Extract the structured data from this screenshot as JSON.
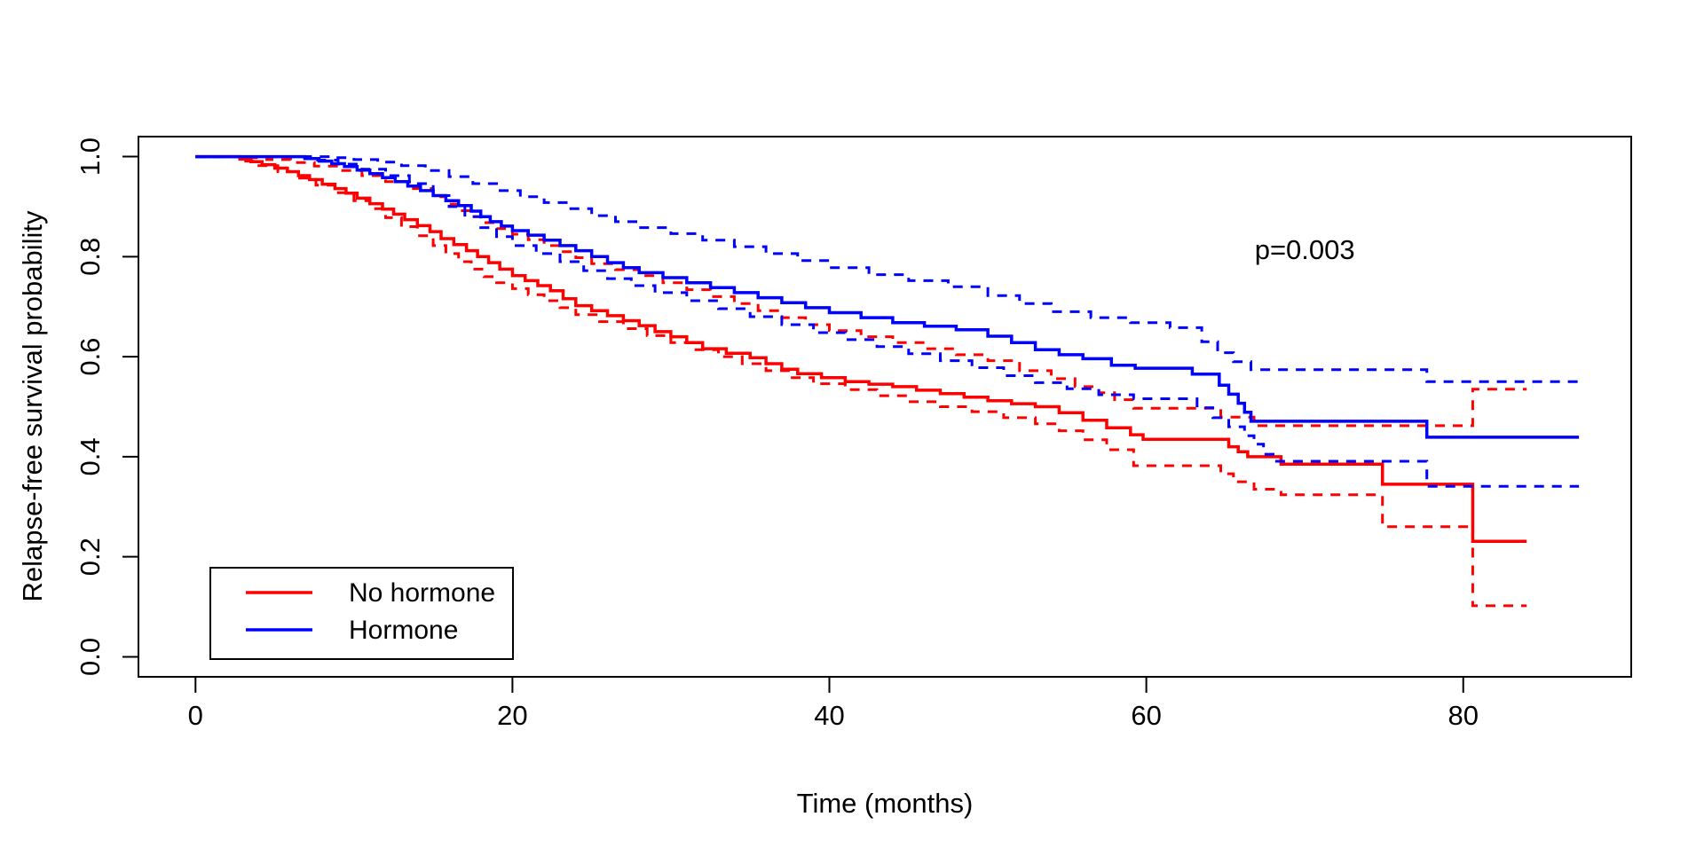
{
  "figure": {
    "background": "#ffffff",
    "p_value_annotation": "p=0.003",
    "xlabel": "Time (months)",
    "ylabel": "Relapse-free survival probability"
  },
  "legend": {
    "entries": [
      {
        "label": "No hormone",
        "color": "#ff0000"
      },
      {
        "label": "Hormone",
        "color": "#0000ff"
      }
    ]
  },
  "chart_data": {
    "type": "line",
    "subtype": "kaplan-meier-step",
    "title": "",
    "xlabel": "Time (months)",
    "ylabel": "Relapse-free survival probability",
    "xlim": [
      -3.6,
      90.6
    ],
    "ylim": [
      -0.04,
      1.04
    ],
    "grid": false,
    "legend_position": "bottom-left",
    "annotation": {
      "text": "p=0.003",
      "x": 70,
      "y": 0.795
    },
    "xticks": {
      "values": [
        0,
        20,
        40,
        60,
        80
      ],
      "labels": [
        "0",
        "20",
        "40",
        "60",
        "80"
      ]
    },
    "yticks": {
      "values": [
        0.0,
        0.2,
        0.4,
        0.6,
        0.8,
        1.0
      ],
      "labels": [
        "0.0",
        "0.2",
        "0.4",
        "0.6",
        "0.8",
        "1.0"
      ]
    },
    "series": [
      {
        "name": "No hormone (KM estimate)",
        "id": "no-hormone-curve",
        "color": "#ff0000",
        "dash": "solid",
        "width": 3.5,
        "points": [
          [
            0,
            1
          ],
          [
            2.8,
            0.995
          ],
          [
            3.5,
            0.99
          ],
          [
            4.2,
            0.984
          ],
          [
            5,
            0.977
          ],
          [
            5.8,
            0.97
          ],
          [
            6.5,
            0.962
          ],
          [
            7.2,
            0.954
          ],
          [
            8,
            0.945
          ],
          [
            8.8,
            0.936
          ],
          [
            9.5,
            0.927
          ],
          [
            10.2,
            0.917
          ],
          [
            11,
            0.906
          ],
          [
            11.8,
            0.895
          ],
          [
            12.5,
            0.885
          ],
          [
            13.2,
            0.874
          ],
          [
            14,
            0.862
          ],
          [
            14.8,
            0.85
          ],
          [
            15.5,
            0.836
          ],
          [
            16.3,
            0.824
          ],
          [
            17.1,
            0.812
          ],
          [
            17.8,
            0.8
          ],
          [
            18.5,
            0.788
          ],
          [
            19.2,
            0.775
          ],
          [
            20,
            0.762
          ],
          [
            20.8,
            0.752
          ],
          [
            21.6,
            0.742
          ],
          [
            22.4,
            0.732
          ],
          [
            23.2,
            0.716
          ],
          [
            24,
            0.702
          ],
          [
            25,
            0.692
          ],
          [
            26,
            0.682
          ],
          [
            27,
            0.672
          ],
          [
            28,
            0.662
          ],
          [
            29,
            0.65
          ],
          [
            30,
            0.64
          ],
          [
            31,
            0.628
          ],
          [
            32,
            0.616
          ],
          [
            33.5,
            0.607
          ],
          [
            35,
            0.598
          ],
          [
            36,
            0.586
          ],
          [
            37,
            0.575
          ],
          [
            38,
            0.566
          ],
          [
            39.5,
            0.558
          ],
          [
            41,
            0.55
          ],
          [
            42.5,
            0.545
          ],
          [
            44,
            0.54
          ],
          [
            45.5,
            0.533
          ],
          [
            47,
            0.526
          ],
          [
            48.5,
            0.519
          ],
          [
            50,
            0.512
          ],
          [
            51.5,
            0.506
          ],
          [
            53,
            0.5
          ],
          [
            54.5,
            0.488
          ],
          [
            56,
            0.473
          ],
          [
            57.5,
            0.458
          ],
          [
            59,
            0.444
          ],
          [
            59.8,
            0.435
          ],
          [
            65.2,
            0.42
          ],
          [
            65.8,
            0.41
          ],
          [
            66.4,
            0.4
          ],
          [
            68.5,
            0.385
          ],
          [
            74.9,
            0.345
          ],
          [
            80.6,
            0.231
          ],
          [
            84,
            0.231
          ]
        ]
      },
      {
        "name": "No hormone upper 95% CI",
        "id": "no-hormone-upper-ci",
        "color": "#ff0000",
        "dash": "dashed",
        "width": 3,
        "points": [
          [
            0,
            1
          ],
          [
            3.2,
            0.998
          ],
          [
            4.5,
            0.994
          ],
          [
            6,
            0.988
          ],
          [
            7.5,
            0.981
          ],
          [
            9,
            0.972
          ],
          [
            10.5,
            0.962
          ],
          [
            12,
            0.95
          ],
          [
            13.5,
            0.936
          ],
          [
            15,
            0.92
          ],
          [
            15.8,
            0.905
          ],
          [
            16.6,
            0.892
          ],
          [
            17.4,
            0.88
          ],
          [
            18.2,
            0.868
          ],
          [
            19,
            0.856
          ],
          [
            20,
            0.845
          ],
          [
            21,
            0.834
          ],
          [
            22,
            0.822
          ],
          [
            23,
            0.81
          ],
          [
            24,
            0.798
          ],
          [
            25,
            0.786
          ],
          [
            26.5,
            0.774
          ],
          [
            28,
            0.762
          ],
          [
            29.5,
            0.748
          ],
          [
            31,
            0.734
          ],
          [
            32.5,
            0.72
          ],
          [
            34,
            0.706
          ],
          [
            35.5,
            0.692
          ],
          [
            37,
            0.678
          ],
          [
            38.5,
            0.664
          ],
          [
            40,
            0.652
          ],
          [
            42,
            0.64
          ],
          [
            44,
            0.628
          ],
          [
            46,
            0.616
          ],
          [
            48,
            0.604
          ],
          [
            50,
            0.592
          ],
          [
            52,
            0.572
          ],
          [
            54,
            0.556
          ],
          [
            55.5,
            0.54
          ],
          [
            57,
            0.528
          ],
          [
            58,
            0.514
          ],
          [
            59.2,
            0.497
          ],
          [
            64.7,
            0.479
          ],
          [
            66.8,
            0.462
          ],
          [
            80.6,
            0.535
          ],
          [
            84,
            0.535
          ]
        ]
      },
      {
        "name": "No hormone lower 95% CI",
        "id": "no-hormone-lower-ci",
        "color": "#ff0000",
        "dash": "dashed",
        "width": 3,
        "points": [
          [
            0,
            1
          ],
          [
            2.8,
            0.991
          ],
          [
            4,
            0.982
          ],
          [
            5.2,
            0.97
          ],
          [
            6.4,
            0.957
          ],
          [
            7.6,
            0.943
          ],
          [
            8.8,
            0.928
          ],
          [
            10,
            0.912
          ],
          [
            11,
            0.896
          ],
          [
            12,
            0.878
          ],
          [
            13,
            0.86
          ],
          [
            14,
            0.842
          ],
          [
            15,
            0.822
          ],
          [
            15.8,
            0.806
          ],
          [
            16.6,
            0.79
          ],
          [
            17.4,
            0.775
          ],
          [
            18.2,
            0.76
          ],
          [
            19,
            0.748
          ],
          [
            20,
            0.736
          ],
          [
            21,
            0.724
          ],
          [
            22,
            0.712
          ],
          [
            23,
            0.698
          ],
          [
            24,
            0.684
          ],
          [
            25.5,
            0.67
          ],
          [
            27,
            0.656
          ],
          [
            28.5,
            0.642
          ],
          [
            30,
            0.628
          ],
          [
            31.5,
            0.614
          ],
          [
            33,
            0.6
          ],
          [
            34.5,
            0.586
          ],
          [
            36,
            0.572
          ],
          [
            37.5,
            0.558
          ],
          [
            39,
            0.546
          ],
          [
            41,
            0.534
          ],
          [
            43,
            0.522
          ],
          [
            45,
            0.51
          ],
          [
            47,
            0.5
          ],
          [
            49,
            0.49
          ],
          [
            51,
            0.478
          ],
          [
            53,
            0.466
          ],
          [
            54.5,
            0.452
          ],
          [
            56,
            0.434
          ],
          [
            57.5,
            0.414
          ],
          [
            59.2,
            0.382
          ],
          [
            64.7,
            0.366
          ],
          [
            65.5,
            0.35
          ],
          [
            66.8,
            0.335
          ],
          [
            68.5,
            0.324
          ],
          [
            74.9,
            0.26
          ],
          [
            80.6,
            0.102
          ],
          [
            84,
            0.102
          ]
        ]
      },
      {
        "name": "Hormone (KM estimate)",
        "id": "hormone-curve",
        "color": "#0000ff",
        "dash": "solid",
        "width": 3.5,
        "points": [
          [
            0,
            1
          ],
          [
            6.9,
            0.996
          ],
          [
            7.8,
            0.991
          ],
          [
            8.6,
            0.986
          ],
          [
            9.4,
            0.98
          ],
          [
            10.2,
            0.973
          ],
          [
            11,
            0.966
          ],
          [
            11.8,
            0.958
          ],
          [
            12.6,
            0.95
          ],
          [
            13.4,
            0.941
          ],
          [
            14.2,
            0.932
          ],
          [
            15,
            0.922
          ],
          [
            15.8,
            0.912
          ],
          [
            16.6,
            0.902
          ],
          [
            17.4,
            0.891
          ],
          [
            18,
            0.88
          ],
          [
            18.6,
            0.87
          ],
          [
            19.3,
            0.861
          ],
          [
            20,
            0.852
          ],
          [
            21,
            0.843
          ],
          [
            22,
            0.833
          ],
          [
            23,
            0.822
          ],
          [
            24,
            0.812
          ],
          [
            25,
            0.8
          ],
          [
            26,
            0.788
          ],
          [
            27,
            0.778
          ],
          [
            28,
            0.768
          ],
          [
            29.5,
            0.758
          ],
          [
            31,
            0.748
          ],
          [
            32.5,
            0.738
          ],
          [
            34,
            0.728
          ],
          [
            35.5,
            0.718
          ],
          [
            37,
            0.708
          ],
          [
            38.5,
            0.698
          ],
          [
            40,
            0.688
          ],
          [
            42,
            0.678
          ],
          [
            44,
            0.668
          ],
          [
            46,
            0.661
          ],
          [
            48,
            0.654
          ],
          [
            50,
            0.641
          ],
          [
            51.5,
            0.628
          ],
          [
            53,
            0.614
          ],
          [
            54.5,
            0.604
          ],
          [
            56,
            0.596
          ],
          [
            57.8,
            0.583
          ],
          [
            59.3,
            0.577
          ],
          [
            62.9,
            0.565
          ],
          [
            64.6,
            0.543
          ],
          [
            65.2,
            0.525
          ],
          [
            65.8,
            0.507
          ],
          [
            66.2,
            0.489
          ],
          [
            66.6,
            0.471
          ],
          [
            77.7,
            0.439
          ],
          [
            87.3,
            0.439
          ]
        ]
      },
      {
        "name": "Hormone upper 95% CI",
        "id": "hormone-upper-ci",
        "color": "#0000ff",
        "dash": "dashed",
        "width": 3,
        "points": [
          [
            0,
            1
          ],
          [
            8.6,
            0.998
          ],
          [
            10,
            0.994
          ],
          [
            11.5,
            0.989
          ],
          [
            13,
            0.982
          ],
          [
            14.5,
            0.972
          ],
          [
            16,
            0.96
          ],
          [
            17.5,
            0.946
          ],
          [
            19,
            0.932
          ],
          [
            20.5,
            0.92
          ],
          [
            22,
            0.908
          ],
          [
            23.5,
            0.896
          ],
          [
            25,
            0.882
          ],
          [
            26.5,
            0.87
          ],
          [
            28,
            0.858
          ],
          [
            30,
            0.846
          ],
          [
            32,
            0.833
          ],
          [
            34,
            0.82
          ],
          [
            36,
            0.806
          ],
          [
            38,
            0.792
          ],
          [
            40,
            0.778
          ],
          [
            42.5,
            0.764
          ],
          [
            45,
            0.752
          ],
          [
            47.5,
            0.74
          ],
          [
            50,
            0.722
          ],
          [
            52,
            0.706
          ],
          [
            54,
            0.69
          ],
          [
            56.5,
            0.678
          ],
          [
            59,
            0.668
          ],
          [
            61.5,
            0.658
          ],
          [
            63.5,
            0.63
          ],
          [
            64.5,
            0.608
          ],
          [
            65.5,
            0.59
          ],
          [
            66.6,
            0.574
          ],
          [
            77.7,
            0.55
          ],
          [
            87.3,
            0.55
          ]
        ]
      },
      {
        "name": "Hormone lower 95% CI",
        "id": "hormone-lower-ci",
        "color": "#0000ff",
        "dash": "dashed",
        "width": 3,
        "points": [
          [
            0,
            1
          ],
          [
            7.5,
            0.993
          ],
          [
            9,
            0.985
          ],
          [
            10.5,
            0.975
          ],
          [
            12,
            0.962
          ],
          [
            13.5,
            0.946
          ],
          [
            15,
            0.922
          ],
          [
            16,
            0.9
          ],
          [
            17,
            0.88
          ],
          [
            18,
            0.858
          ],
          [
            19,
            0.84
          ],
          [
            20,
            0.822
          ],
          [
            21.5,
            0.806
          ],
          [
            23,
            0.79
          ],
          [
            24.5,
            0.772
          ],
          [
            26,
            0.756
          ],
          [
            27.5,
            0.742
          ],
          [
            29,
            0.728
          ],
          [
            31,
            0.712
          ],
          [
            33,
            0.696
          ],
          [
            35,
            0.68
          ],
          [
            37,
            0.664
          ],
          [
            39,
            0.648
          ],
          [
            41,
            0.634
          ],
          [
            43,
            0.62
          ],
          [
            45,
            0.606
          ],
          [
            47,
            0.592
          ],
          [
            49,
            0.578
          ],
          [
            51,
            0.562
          ],
          [
            53,
            0.548
          ],
          [
            55,
            0.536
          ],
          [
            57,
            0.524
          ],
          [
            59.2,
            0.516
          ],
          [
            63.2,
            0.498
          ],
          [
            64.2,
            0.478
          ],
          [
            65.2,
            0.46
          ],
          [
            66.2,
            0.442
          ],
          [
            66.8,
            0.425
          ],
          [
            67.4,
            0.405
          ],
          [
            68,
            0.391
          ],
          [
            77.7,
            0.341
          ],
          [
            87.3,
            0.341
          ]
        ]
      }
    ]
  }
}
